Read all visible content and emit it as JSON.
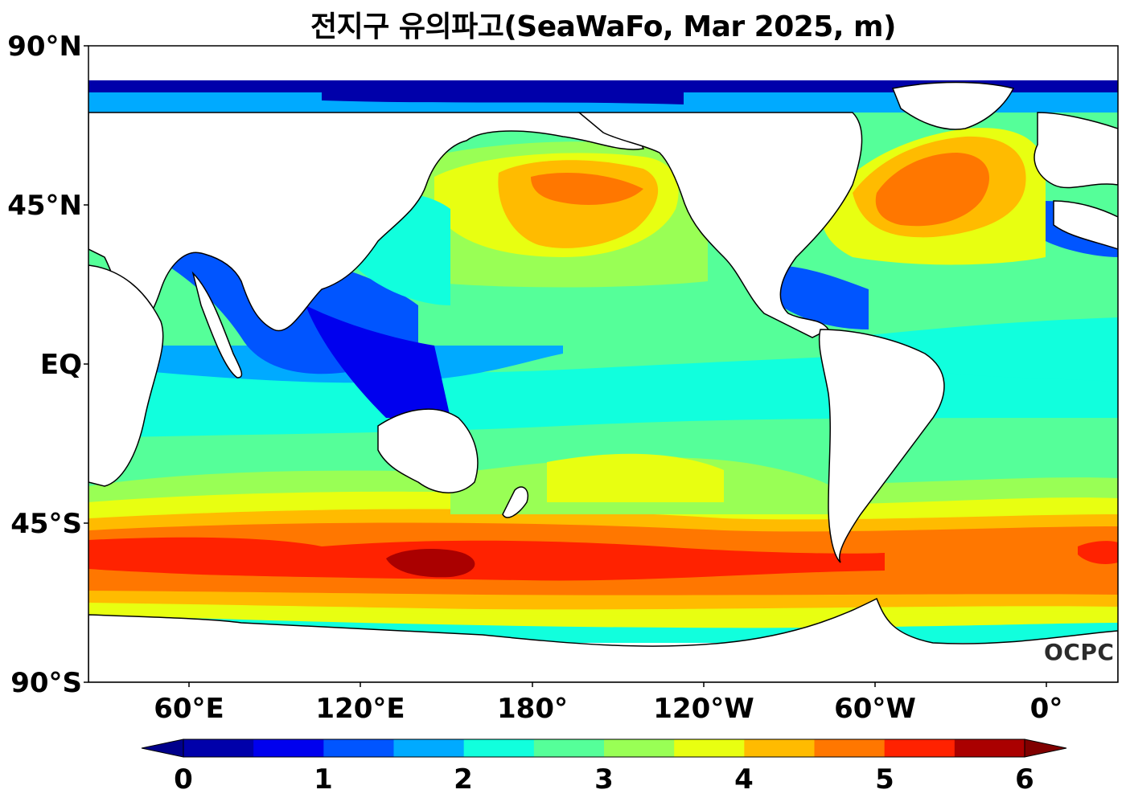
{
  "title": "전지구 유의파고(SeaWaFo, Mar 2025, m)",
  "lat_labels": [
    "90°N",
    "45°N",
    "EQ",
    "45°S",
    "90°S"
  ],
  "lon_labels": [
    "60°E",
    "120°E",
    "180°",
    "120°W",
    "60°W",
    "0°"
  ],
  "colorbar": {
    "ticks": [
      "0",
      "1",
      "2",
      "3",
      "4",
      "5",
      "6"
    ],
    "min": 0,
    "max": 6,
    "step": 0.5,
    "colors": [
      "#0000aa",
      "#0000ee",
      "#0055ff",
      "#00aaff",
      "#11ffdd",
      "#55ff99",
      "#99ff55",
      "#e8ff11",
      "#ffbb00",
      "#ff7700",
      "#ff2200",
      "#aa0000"
    ],
    "under_color": "#00008b",
    "over_color": "#800000"
  },
  "land_color": "#ffffff",
  "logo": "OCPC"
}
